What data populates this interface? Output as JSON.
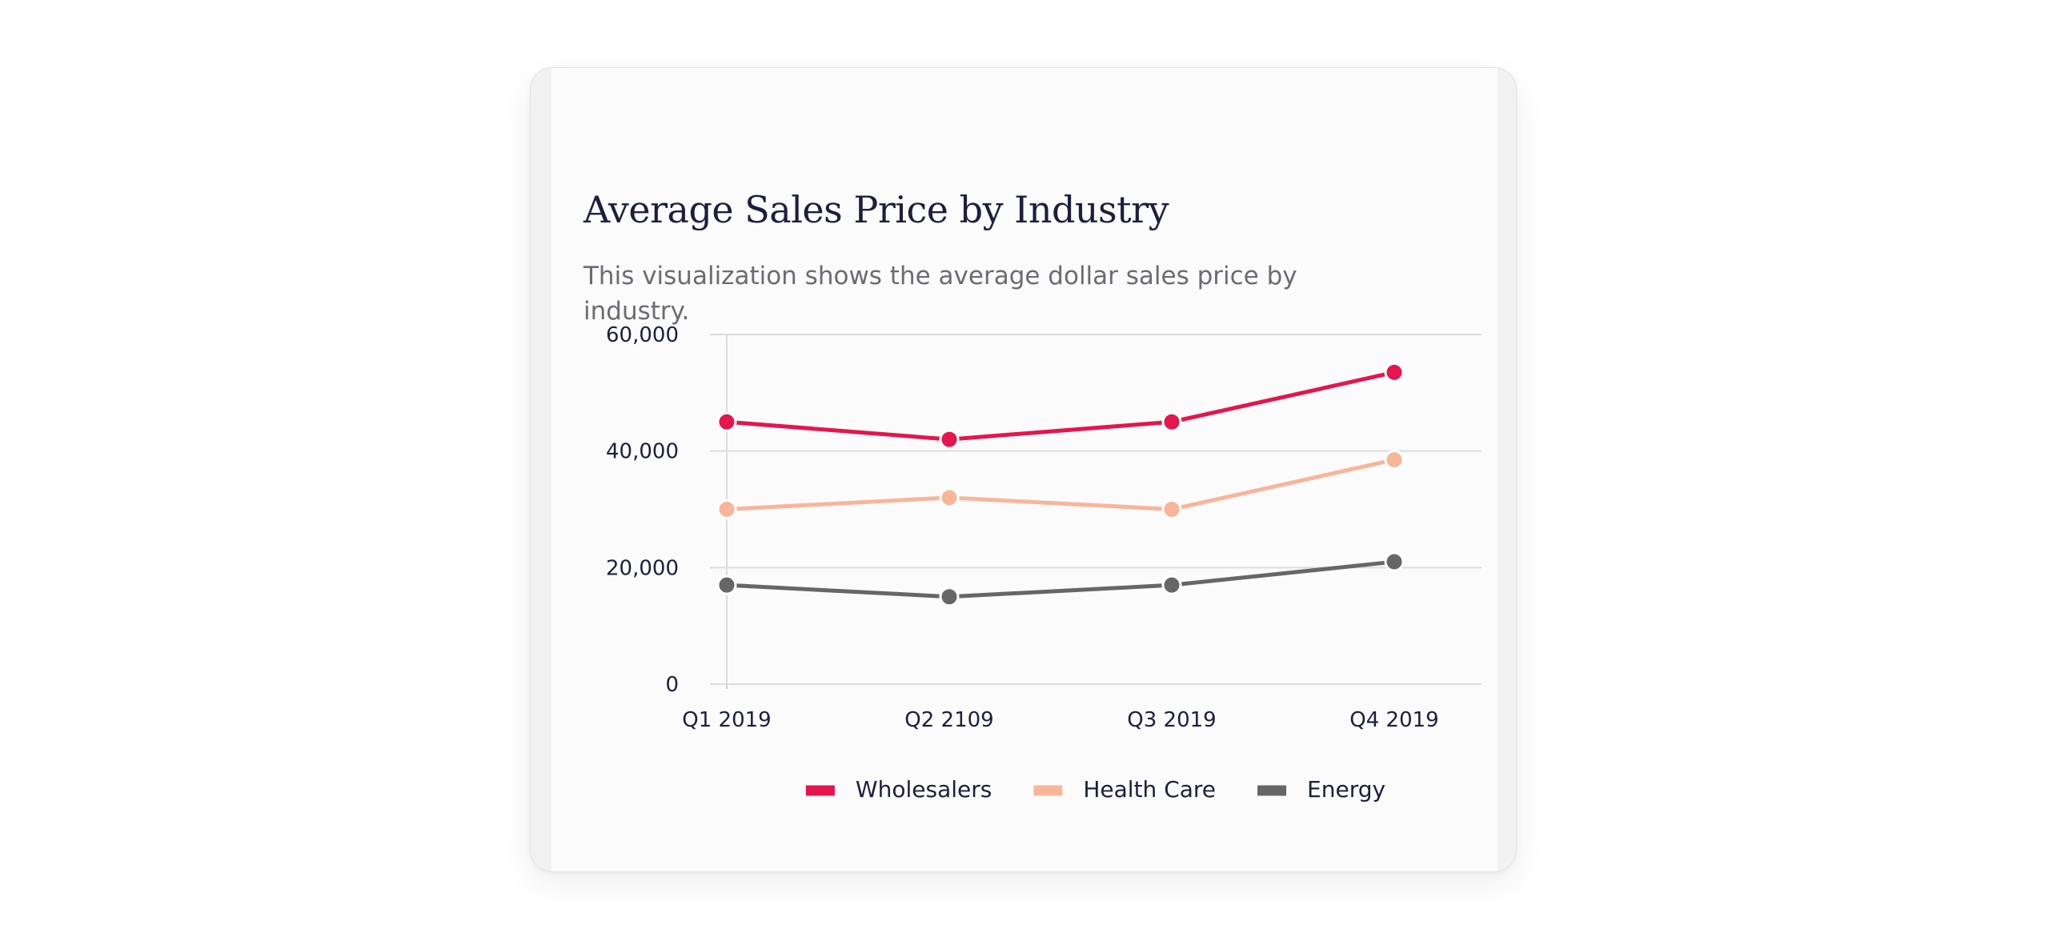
{
  "card": {
    "title": "Average Sales Price by Industry",
    "subtitle": "This visualization shows the average dollar sales price by industry."
  },
  "chart_data": {
    "type": "line",
    "title": "Average Sales Price by Industry",
    "subtitle": "This visualization shows the average dollar sales price by industry.",
    "categories": [
      "Q1 2019",
      "Q2 2109",
      "Q3 2019",
      "Q4 2019"
    ],
    "series": [
      {
        "name": "Wholesalers",
        "color": "#e5154d",
        "values": [
          45000,
          42000,
          45000,
          53500
        ]
      },
      {
        "name": "Health Care",
        "color": "#f9b599",
        "values": [
          30000,
          32000,
          30000,
          38500
        ]
      },
      {
        "name": "Energy",
        "color": "#666666",
        "values": [
          17000,
          15000,
          17000,
          21000
        ]
      }
    ],
    "yticks": [
      0,
      20000,
      40000,
      60000
    ],
    "ytick_labels": [
      "0",
      "20,000",
      "40,000",
      "60,000"
    ],
    "ylim": [
      0,
      60000
    ],
    "xlabel": "",
    "ylabel": "",
    "grid": true,
    "legend_position": "bottom"
  }
}
